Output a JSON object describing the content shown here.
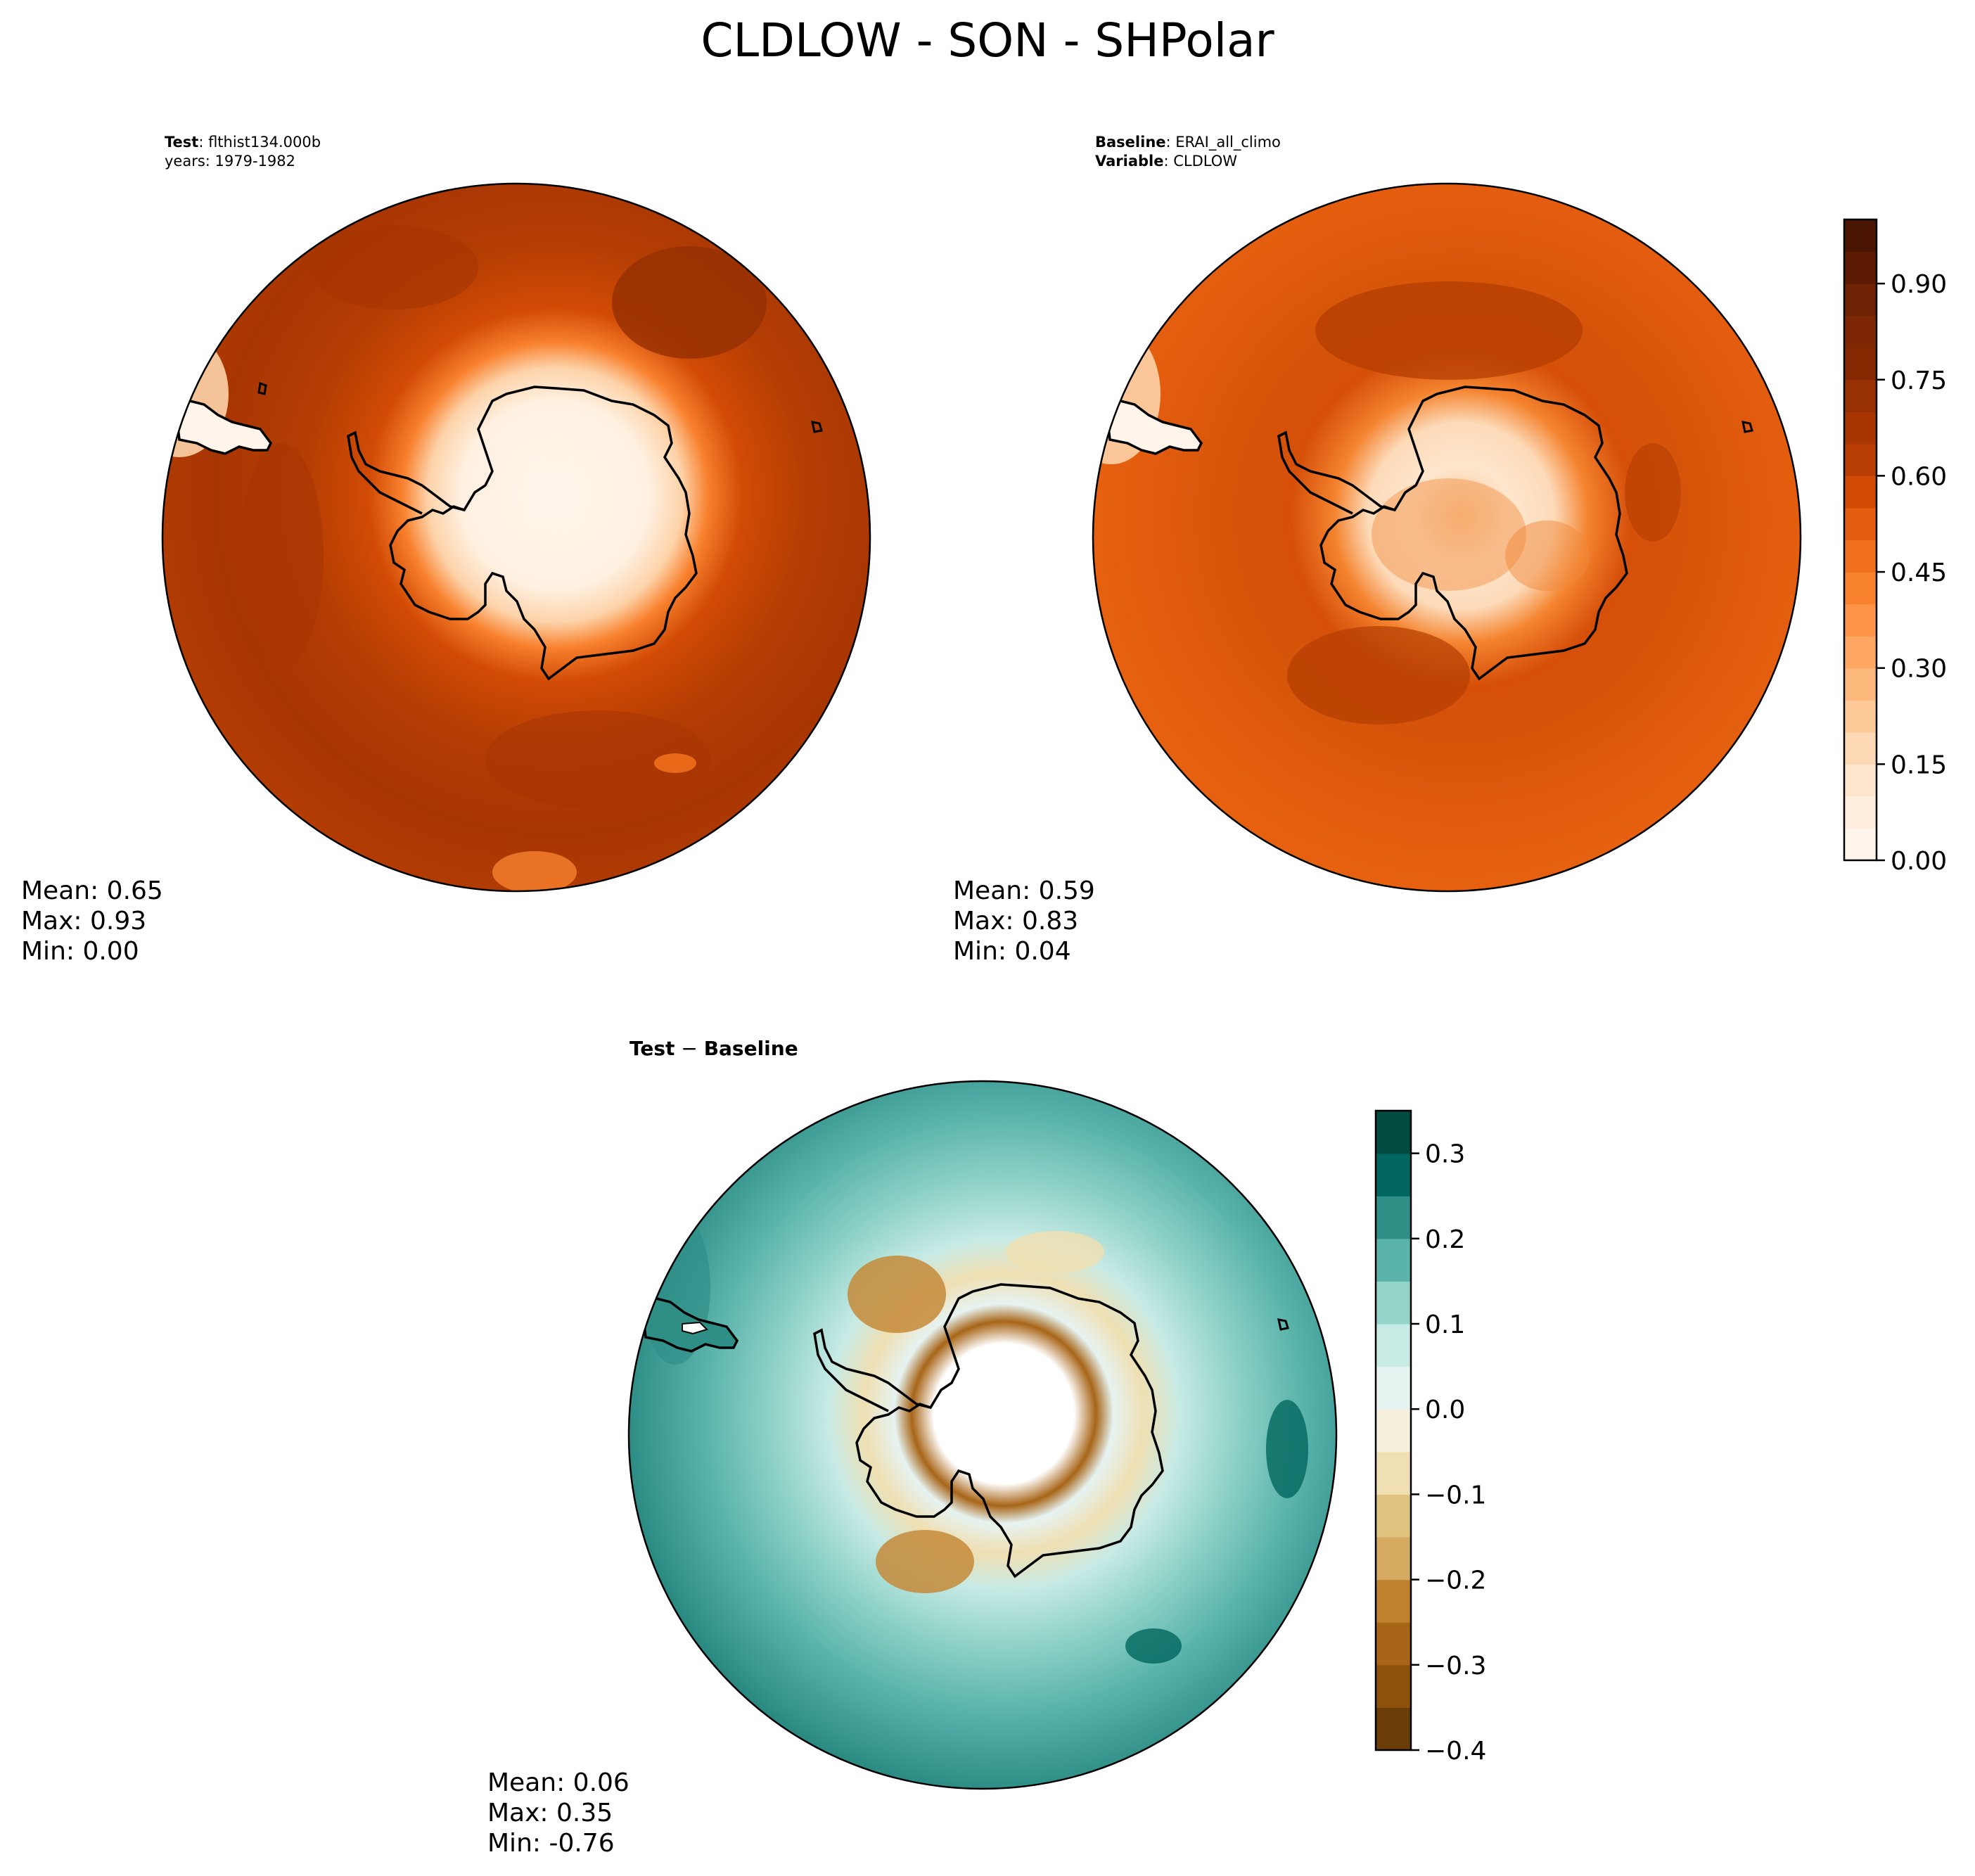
{
  "figure": {
    "title": "CLDLOW - SON - SHPolar"
  },
  "panels": {
    "test": {
      "header_key_1": "Test",
      "header_val_1": ": flthist134.000b",
      "header_line_2": "years: 1979-1982",
      "stats": {
        "mean": "Mean:  0.65",
        "max": "Max:  0.93",
        "min": "Min:  0.00"
      }
    },
    "baseline": {
      "header_key_1": "Baseline",
      "header_val_1": ": ERAI_all_climo",
      "header_key_2": "Variable",
      "header_val_2": ": CLDLOW",
      "stats": {
        "mean": "Mean:  0.59",
        "max": "Max:  0.83",
        "min": "Min:  0.04"
      }
    },
    "diff": {
      "header_key_1": "Test",
      "header_op": " − ",
      "header_key_2": "Baseline",
      "stats": {
        "mean": "Mean:  0.06",
        "max": "Max:  0.35",
        "min": "Min: -0.76"
      }
    }
  },
  "chart_data": [
    {
      "type": "heatmap",
      "projection": "south polar stereographic",
      "field": "CLDLOW",
      "season": "SON",
      "region": "SHPolar",
      "summary": {
        "mean": 0.65,
        "max": 0.93,
        "min": 0.0
      },
      "colorbar": {
        "ticks": [
          "0.00",
          "0.15",
          "0.30",
          "0.45",
          "0.60",
          "0.75",
          "0.90"
        ],
        "tick_values": [
          0.0,
          0.15,
          0.3,
          0.45,
          0.6,
          0.75,
          0.9
        ],
        "range": [
          0.0,
          1.0
        ],
        "colormap": "Oranges",
        "levels": 20,
        "colors": [
          "#fff5eb",
          "#feeddc",
          "#fee6ce",
          "#fdd8b5",
          "#fdc997",
          "#fdb87c",
          "#fda762",
          "#fd9346",
          "#f8812e",
          "#f06f1c",
          "#e35c0f",
          "#d14b05",
          "#b93e03",
          "#a83603",
          "#973002",
          "#852902",
          "#7f2704",
          "#6e2103",
          "#5c1a02",
          "#4a1502"
        ]
      }
    },
    {
      "type": "heatmap",
      "projection": "south polar stereographic",
      "field": "CLDLOW",
      "season": "SON",
      "region": "SHPolar",
      "summary": {
        "mean": 0.59,
        "max": 0.83,
        "min": 0.04
      },
      "colorbar": "shared with test panel"
    },
    {
      "type": "heatmap",
      "projection": "south polar stereographic",
      "field": "CLDLOW difference",
      "summary": {
        "mean": 0.06,
        "max": 0.35,
        "min": -0.76
      },
      "colorbar": {
        "ticks": [
          "−0.4",
          "−0.3",
          "−0.2",
          "−0.1",
          "0.0",
          "0.1",
          "0.2",
          "0.3"
        ],
        "tick_values": [
          -0.4,
          -0.3,
          -0.2,
          -0.1,
          0.0,
          0.1,
          0.2,
          0.3
        ],
        "range": [
          -0.4,
          0.35
        ],
        "colormap": "BrBG",
        "levels": 15,
        "colors": [
          "#6a3c07",
          "#8c510a",
          "#a86517",
          "#bf812d",
          "#d4aa60",
          "#dfc27d",
          "#efdfb2",
          "#f5f0dc",
          "#e6f3f1",
          "#c7eae5",
          "#93d4c9",
          "#5ab4ac",
          "#2f8f87",
          "#01665e",
          "#024b40"
        ]
      }
    }
  ]
}
